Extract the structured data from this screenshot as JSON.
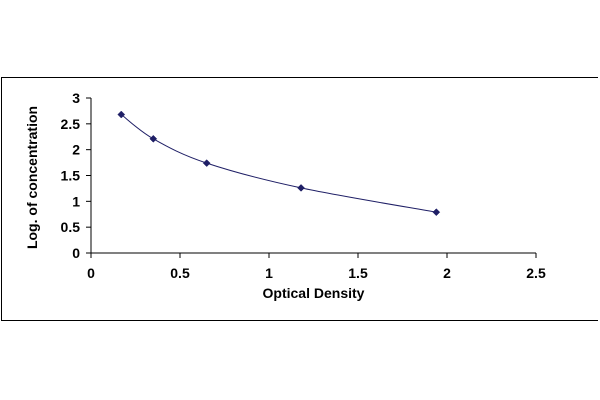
{
  "chart_data": {
    "type": "scatter",
    "title": "",
    "xlabel": "Optical Density",
    "ylabel": "Log. of concentration",
    "xlim": [
      0,
      2.5
    ],
    "ylim": [
      0,
      3
    ],
    "x_ticks": [
      "0",
      "0.5",
      "1",
      "1.5",
      "2",
      "2.5"
    ],
    "y_ticks": [
      "0",
      "0.5",
      "1",
      "1.5",
      "2",
      "2.5",
      "3"
    ],
    "grid": false,
    "legend": "none",
    "trendline": "smooth curve through points",
    "series": [
      {
        "x": [
          0.17,
          0.35,
          0.65,
          1.18,
          1.94
        ],
        "y": [
          2.68,
          2.21,
          1.74,
          1.26,
          0.79
        ]
      }
    ],
    "colors": {
      "marker": "#1f1f66",
      "curve": "#1f1f66"
    }
  }
}
